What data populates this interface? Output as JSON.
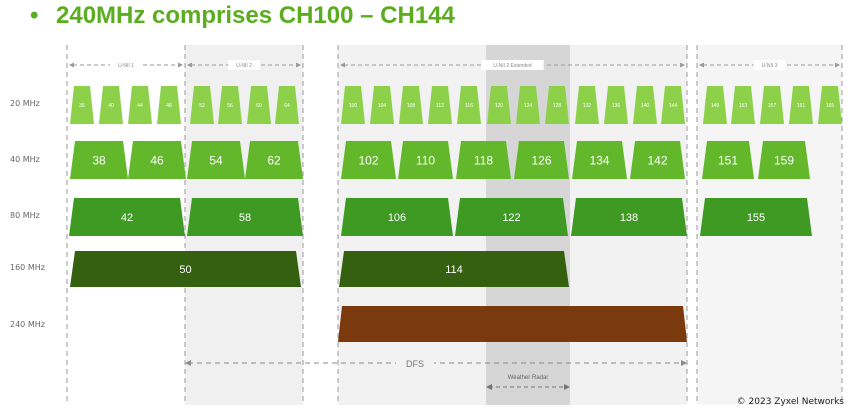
{
  "title": "240MHz comprises CH100 – CH144",
  "bullet": "•",
  "copyright": "© 2023 Zyxel Networks",
  "bands": [
    {
      "label": "U-NII 1"
    },
    {
      "label": "U-NII 2"
    },
    {
      "label": "U-NII 2 Extended"
    },
    {
      "label": "U-NII 3"
    }
  ],
  "row_labels": [
    "20 MHz",
    "40 MHz",
    "80 MHz",
    "160 MHz",
    "240 MHz"
  ],
  "rows": {
    "mhz20": [
      "36",
      "40",
      "44",
      "48",
      "52",
      "56",
      "60",
      "64",
      "100",
      "104",
      "108",
      "112",
      "116",
      "120",
      "124",
      "128",
      "132",
      "136",
      "140",
      "144",
      "149",
      "153",
      "157",
      "161",
      "165"
    ],
    "mhz40": [
      "38",
      "46",
      "54",
      "62",
      "102",
      "110",
      "118",
      "126",
      "134",
      "142",
      "151",
      "159"
    ],
    "mhz80": [
      "42",
      "58",
      "106",
      "122",
      "138",
      "155"
    ],
    "mhz160": [
      "50",
      "114"
    ],
    "mhz240": [
      ""
    ]
  },
  "annotations": {
    "dfs": "DFS",
    "weather_radar": "Weather Radar"
  },
  "colors": {
    "c20": "#8dd14b",
    "c40": "#62b82a",
    "c80": "#3e9a22",
    "c160": "#356010",
    "c240": "#7a3a0d",
    "title": "#5aad1e",
    "shade": "#f0f0f0",
    "radar": "#d6d6d6"
  }
}
